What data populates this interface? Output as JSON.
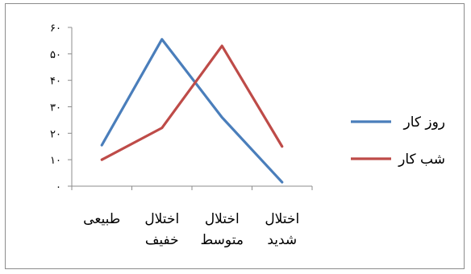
{
  "chart_data": {
    "type": "line",
    "categories": [
      [
        "طبیعی"
      ],
      [
        "اختلال",
        "خفیف"
      ],
      [
        "اختلال",
        "متوسط"
      ],
      [
        "اختلال",
        "شدید"
      ]
    ],
    "y_tick_labels": [
      "۰",
      "۱۰",
      "۲۰",
      "۳۰",
      "۴۰",
      "۵۰",
      "۶۰"
    ],
    "ylim": [
      0,
      60
    ],
    "grid": false,
    "legend_position": "right",
    "series": [
      {
        "name": "روز کار",
        "color": "#4a7ebb",
        "values": [
          15.5,
          55.5,
          26,
          1.5
        ]
      },
      {
        "name": "شب کار",
        "color": "#be4b48",
        "values": [
          10,
          22,
          53,
          15
        ]
      }
    ]
  }
}
